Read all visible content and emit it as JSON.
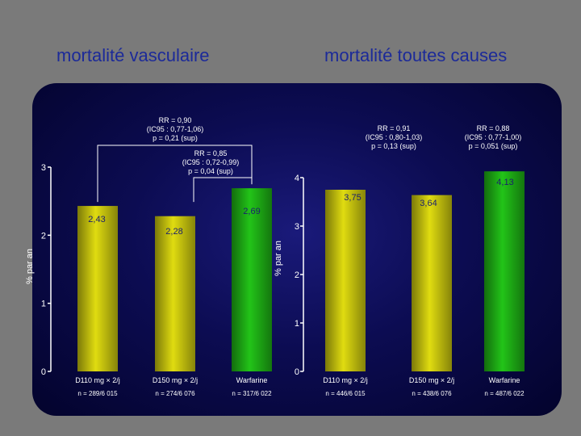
{
  "slide": {
    "title_left": "mortalité vasculaire",
    "title_right": "mortalité toutes causes"
  },
  "colors": {
    "dabigatran_bar": "#e0dc10",
    "warfarin_bar": "#22c418",
    "axis": "#ffffff",
    "panel_background": "#0c0c52",
    "slide_background": "#7a7a7a",
    "title_text": "#1c2a99"
  },
  "chart_data": [
    {
      "type": "bar",
      "title": "Mortalité vasculaire",
      "ylabel": "% par an",
      "ylim": [
        0,
        3
      ],
      "yticks": [
        0,
        1,
        2,
        3
      ],
      "categories": [
        "D110 mg × 2/j",
        "D150 mg × 2/j",
        "Warfarine"
      ],
      "n_labels": [
        "n = 289/6 015",
        "n = 274/6 076",
        "n = 317/6 022"
      ],
      "values": [
        2.43,
        2.28,
        2.69
      ],
      "value_labels": [
        "2,43",
        "2,28",
        "2,69"
      ],
      "bar_colors": [
        "#e0dc10",
        "#e0dc10",
        "#22c418"
      ],
      "annotations": [
        {
          "lines": [
            "RR = 0,90",
            "(IC95 : 0,77-1,06)",
            "p = 0,21 (sup)"
          ],
          "compares": [
            "D110 mg × 2/j",
            "Warfarine"
          ]
        },
        {
          "lines": [
            "RR = 0,85",
            "(IC95 : 0,72-0,99)",
            "p = 0,04 (sup)"
          ],
          "compares": [
            "D150 mg × 2/j",
            "Warfarine"
          ]
        }
      ]
    },
    {
      "type": "bar",
      "title": "Mortalité toutes causes",
      "ylabel": "% par an",
      "ylim": [
        0,
        4
      ],
      "yticks": [
        0,
        1,
        2,
        3,
        4
      ],
      "categories": [
        "D110 mg × 2/j",
        "D150 mg × 2/j",
        "Warfarine"
      ],
      "n_labels": [
        "n = 446/6 015",
        "n = 438/6 076",
        "n = 487/6 022"
      ],
      "values": [
        3.75,
        3.64,
        4.13
      ],
      "value_labels": [
        "3,75",
        "3,64",
        "4,13"
      ],
      "bar_colors": [
        "#e0dc10",
        "#e0dc10",
        "#22c418"
      ],
      "annotations": [
        {
          "lines": [
            "RR = 0,91",
            "(IC95 : 0,80-1,03)",
            "p = 0,13 (sup)"
          ],
          "compares": [
            "D110 mg × 2/j",
            "Warfarine"
          ]
        },
        {
          "lines": [
            "RR = 0,88",
            "(IC95 : 0,77-1,00)",
            "p = 0,051 (sup)"
          ],
          "compares": [
            "D150 mg × 2/j",
            "Warfarine"
          ]
        }
      ]
    }
  ]
}
